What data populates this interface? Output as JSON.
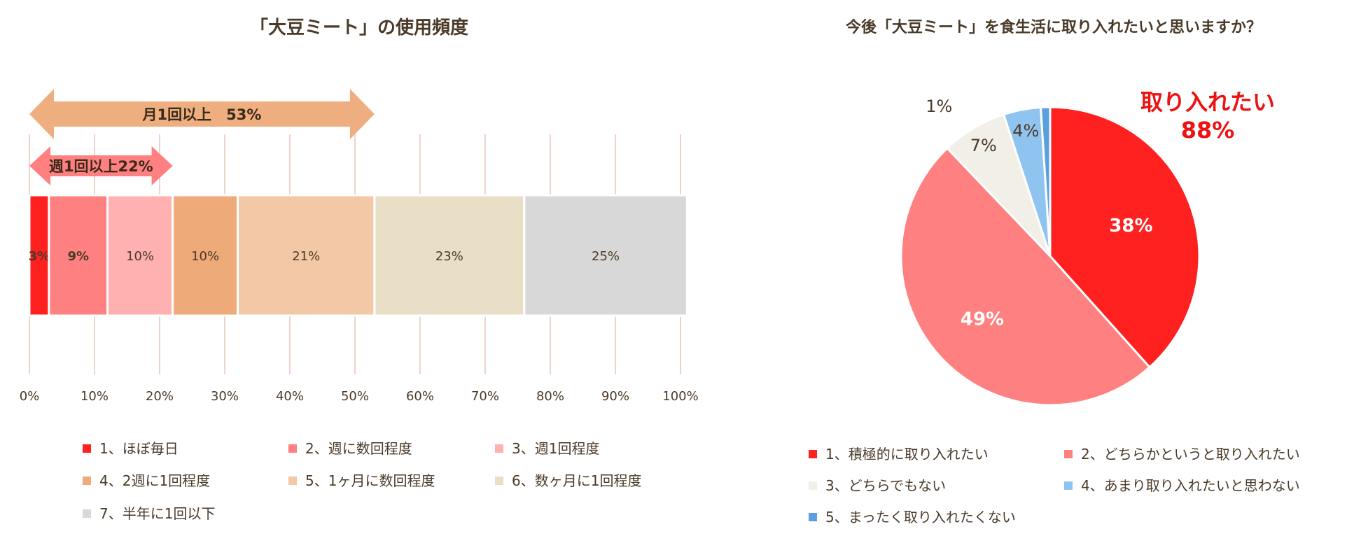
{
  "chart_data": [
    {
      "type": "bar",
      "orientation": "horizontal-stacked-100",
      "title": "「大豆ミート」の使用頻度",
      "xlim": [
        0,
        100
      ],
      "x_ticks": [
        "0%",
        "10%",
        "20%",
        "30%",
        "40%",
        "50%",
        "60%",
        "70%",
        "80%",
        "90%",
        "100%"
      ],
      "grid": true,
      "legend_position": "bottom",
      "series": [
        {
          "name": "1、ほぼ毎日",
          "value": 3,
          "label": "3%",
          "color": "#ff2020"
        },
        {
          "name": "2、週に数回程度",
          "value": 9,
          "label": "9%",
          "color": "#ff8080"
        },
        {
          "name": "3、週1回程度",
          "value": 10,
          "label": "10%",
          "color": "#ffb0b0"
        },
        {
          "name": "4、2週に1回程度",
          "value": 10,
          "label": "10%",
          "color": "#eeaa78"
        },
        {
          "name": "5、1ヶ月に数回程度",
          "value": 21,
          "label": "21%",
          "color": "#f3c8a6"
        },
        {
          "name": "6、数ヶ月に1回程度",
          "value": 23,
          "label": "23%",
          "color": "#e9dfc6"
        },
        {
          "name": "7、半年に1回以下",
          "value": 25,
          "label": "25%",
          "color": "#d8d8d8"
        }
      ],
      "annotations": [
        {
          "text": "月1回以上　53%",
          "from": 0,
          "to": 53,
          "color": "#eeae80"
        },
        {
          "text": "週1回以上22%",
          "from": 0,
          "to": 22,
          "color": "#ff8080"
        }
      ]
    },
    {
      "type": "pie",
      "title": "今後「大豆ミート」を食生活に取り入れたいと思いますか？",
      "legend_position": "bottom",
      "slices": [
        {
          "name": "1、積極的に取り入れたい",
          "value": 38,
          "label": "38%",
          "color": "#ff2020"
        },
        {
          "name": "2、どちらかというと取り入れたい",
          "value": 49,
          "label": "49%",
          "color": "#ff8080"
        },
        {
          "name": "3、どちらでもない",
          "value": 7,
          "label": "7%",
          "color": "#f2eee8"
        },
        {
          "name": "4、あまり取り入れたいと思わない",
          "value": 4,
          "label": "4%",
          "color": "#90c4f0"
        },
        {
          "name": "5、まったく取り入れたくない",
          "value": 1,
          "label": "1%",
          "color": "#5aa0e0"
        }
      ],
      "annotation": {
        "line1": "取り入れたい",
        "line2": "88%",
        "color": "#ee1111"
      }
    }
  ]
}
